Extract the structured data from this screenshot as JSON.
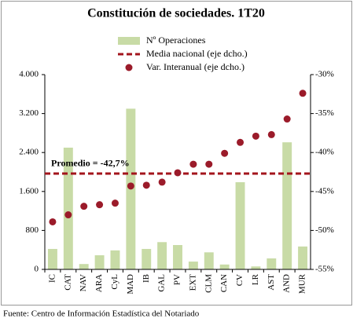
{
  "chart_data": {
    "type": "bar",
    "title": "Constitución de sociedades. 1T20",
    "categories": [
      "IC",
      "CAT",
      "NAV",
      "ARA",
      "CyL",
      "MAD",
      "IB",
      "GAL",
      "PV",
      "EXT",
      "CLM",
      "CAN",
      "CV",
      "LR",
      "AST",
      "AND",
      "MUR"
    ],
    "series": [
      {
        "name": "Nº Operaciones",
        "type": "bar",
        "color": "#c8dba6",
        "values": [
          420,
          2500,
          110,
          290,
          390,
          3300,
          420,
          560,
          500,
          160,
          350,
          100,
          1790,
          60,
          225,
          2610,
          470
        ]
      },
      {
        "name": "Media nacional (eje dcho.)",
        "type": "hline",
        "axis": "y2",
        "color": "#a3141c",
        "value": -42.7
      },
      {
        "name": "Var. Interanual (eje dcho.)",
        "type": "scatter",
        "axis": "y2",
        "color": "#9b1b2a",
        "values": [
          -48.9,
          -48.0,
          -46.9,
          -46.7,
          -46.5,
          -44.3,
          -44.2,
          -43.8,
          -42.6,
          -41.5,
          -41.5,
          -40.1,
          -38.7,
          -37.9,
          -37.7,
          -35.7,
          -32.4
        ]
      }
    ],
    "annotation": "Promedio = -42,7%",
    "ylim": [
      0,
      4000
    ],
    "yticks": [
      0,
      800,
      {
        "value": 1600,
        "label": "1.600"
      },
      {
        "value": 2400,
        "label": "2.400"
      },
      {
        "value": 3200,
        "label": "3.200"
      },
      {
        "value": 4000,
        "label": "4.000"
      }
    ],
    "y2lim": [
      -55,
      -30
    ],
    "y2ticks": [
      {
        "value": -55,
        "label": "-55%"
      },
      {
        "value": -50,
        "label": "-50%"
      },
      {
        "value": -45,
        "label": "-45%"
      },
      {
        "value": -40,
        "label": "-40%"
      },
      {
        "value": -35,
        "label": "-35%"
      },
      {
        "value": -30,
        "label": "-30%"
      }
    ],
    "legend": "top-right",
    "source": "Fuente: Centro de Información Estadística del Notariado"
  }
}
